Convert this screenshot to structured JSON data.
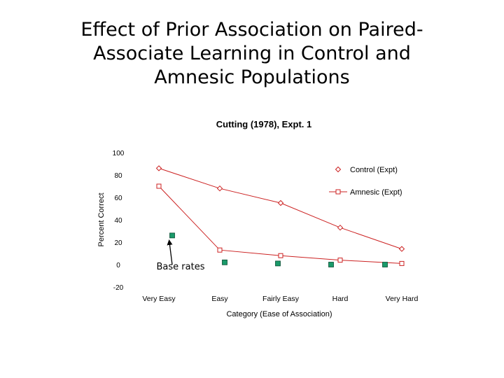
{
  "slide": {
    "title_lines": [
      "Effect of Prior Association on Paired-",
      "Associate Learning in Control and",
      "Amnesic Populations"
    ]
  },
  "chart_data": {
    "type": "line",
    "title": "Cutting (1978), Expt. 1",
    "xlabel": "Category (Ease of Association)",
    "ylabel": "Percent Correct",
    "categories": [
      "Very Easy",
      "Easy",
      "Fairly Easy",
      "Hard",
      "Very Hard"
    ],
    "ylim": [
      -20,
      100
    ],
    "yticks": [
      100,
      80,
      60,
      40,
      20,
      0,
      -20
    ],
    "grid": false,
    "legend_position": "top-right",
    "series": [
      {
        "name": "Control (Expt)",
        "marker": "diamond",
        "color": "#cc2222",
        "values": [
          86,
          68,
          55,
          33,
          14
        ]
      },
      {
        "name": "Amnesic (Expt)",
        "marker": "square",
        "color": "#cc2222",
        "values": [
          70,
          13,
          8,
          4,
          1
        ]
      }
    ],
    "base_rates": {
      "color": "#1a9a6a",
      "values": [
        26,
        2,
        1,
        0,
        0
      ]
    },
    "annotation": "Base rates"
  }
}
